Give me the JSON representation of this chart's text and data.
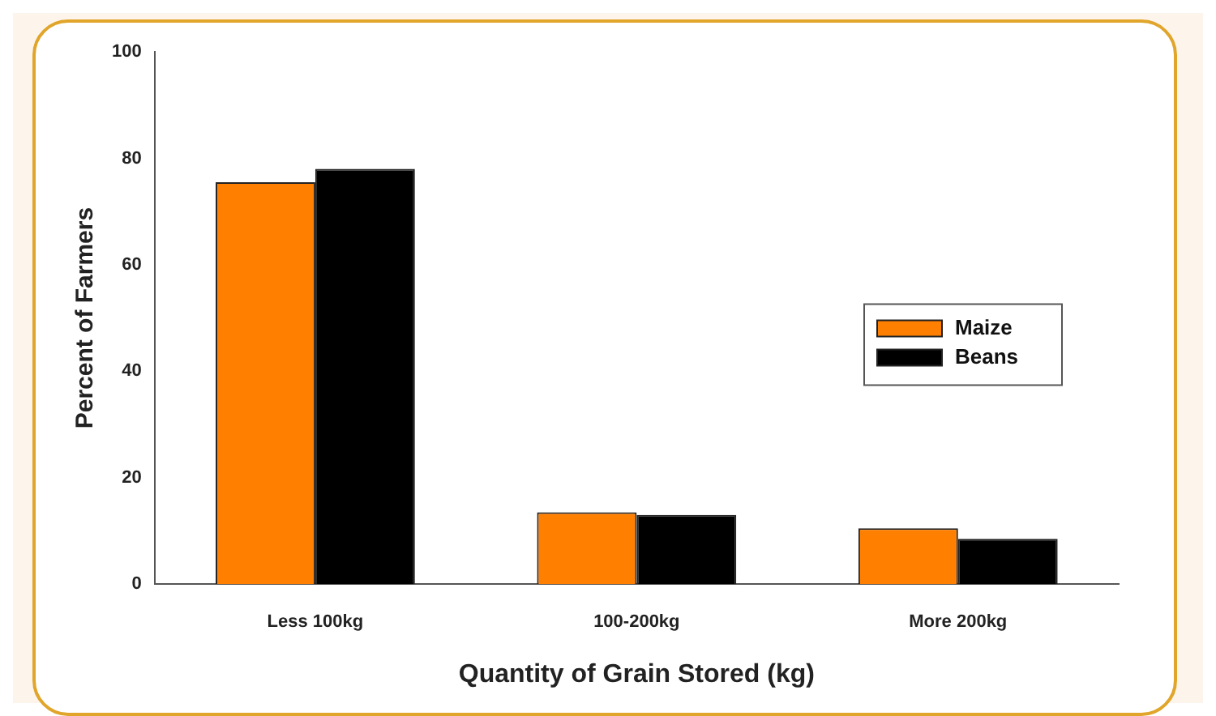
{
  "chart_data": {
    "type": "bar",
    "xlabel": "Quantity of Grain Stored (kg)",
    "ylabel": "Percent of Farmers",
    "categories": [
      "Less 100kg",
      "100-200kg",
      "More 200kg"
    ],
    "series": [
      {
        "name": "Maize",
        "color": "#ff8000",
        "values": [
          75.5,
          13.5,
          10.5
        ]
      },
      {
        "name": "Beans",
        "color": "#000000",
        "values": [
          78,
          13,
          8.5
        ]
      }
    ],
    "ylim": [
      0,
      100
    ],
    "yticks": [
      0,
      20,
      40,
      60,
      80,
      100
    ],
    "grid": false,
    "legend": "right"
  }
}
